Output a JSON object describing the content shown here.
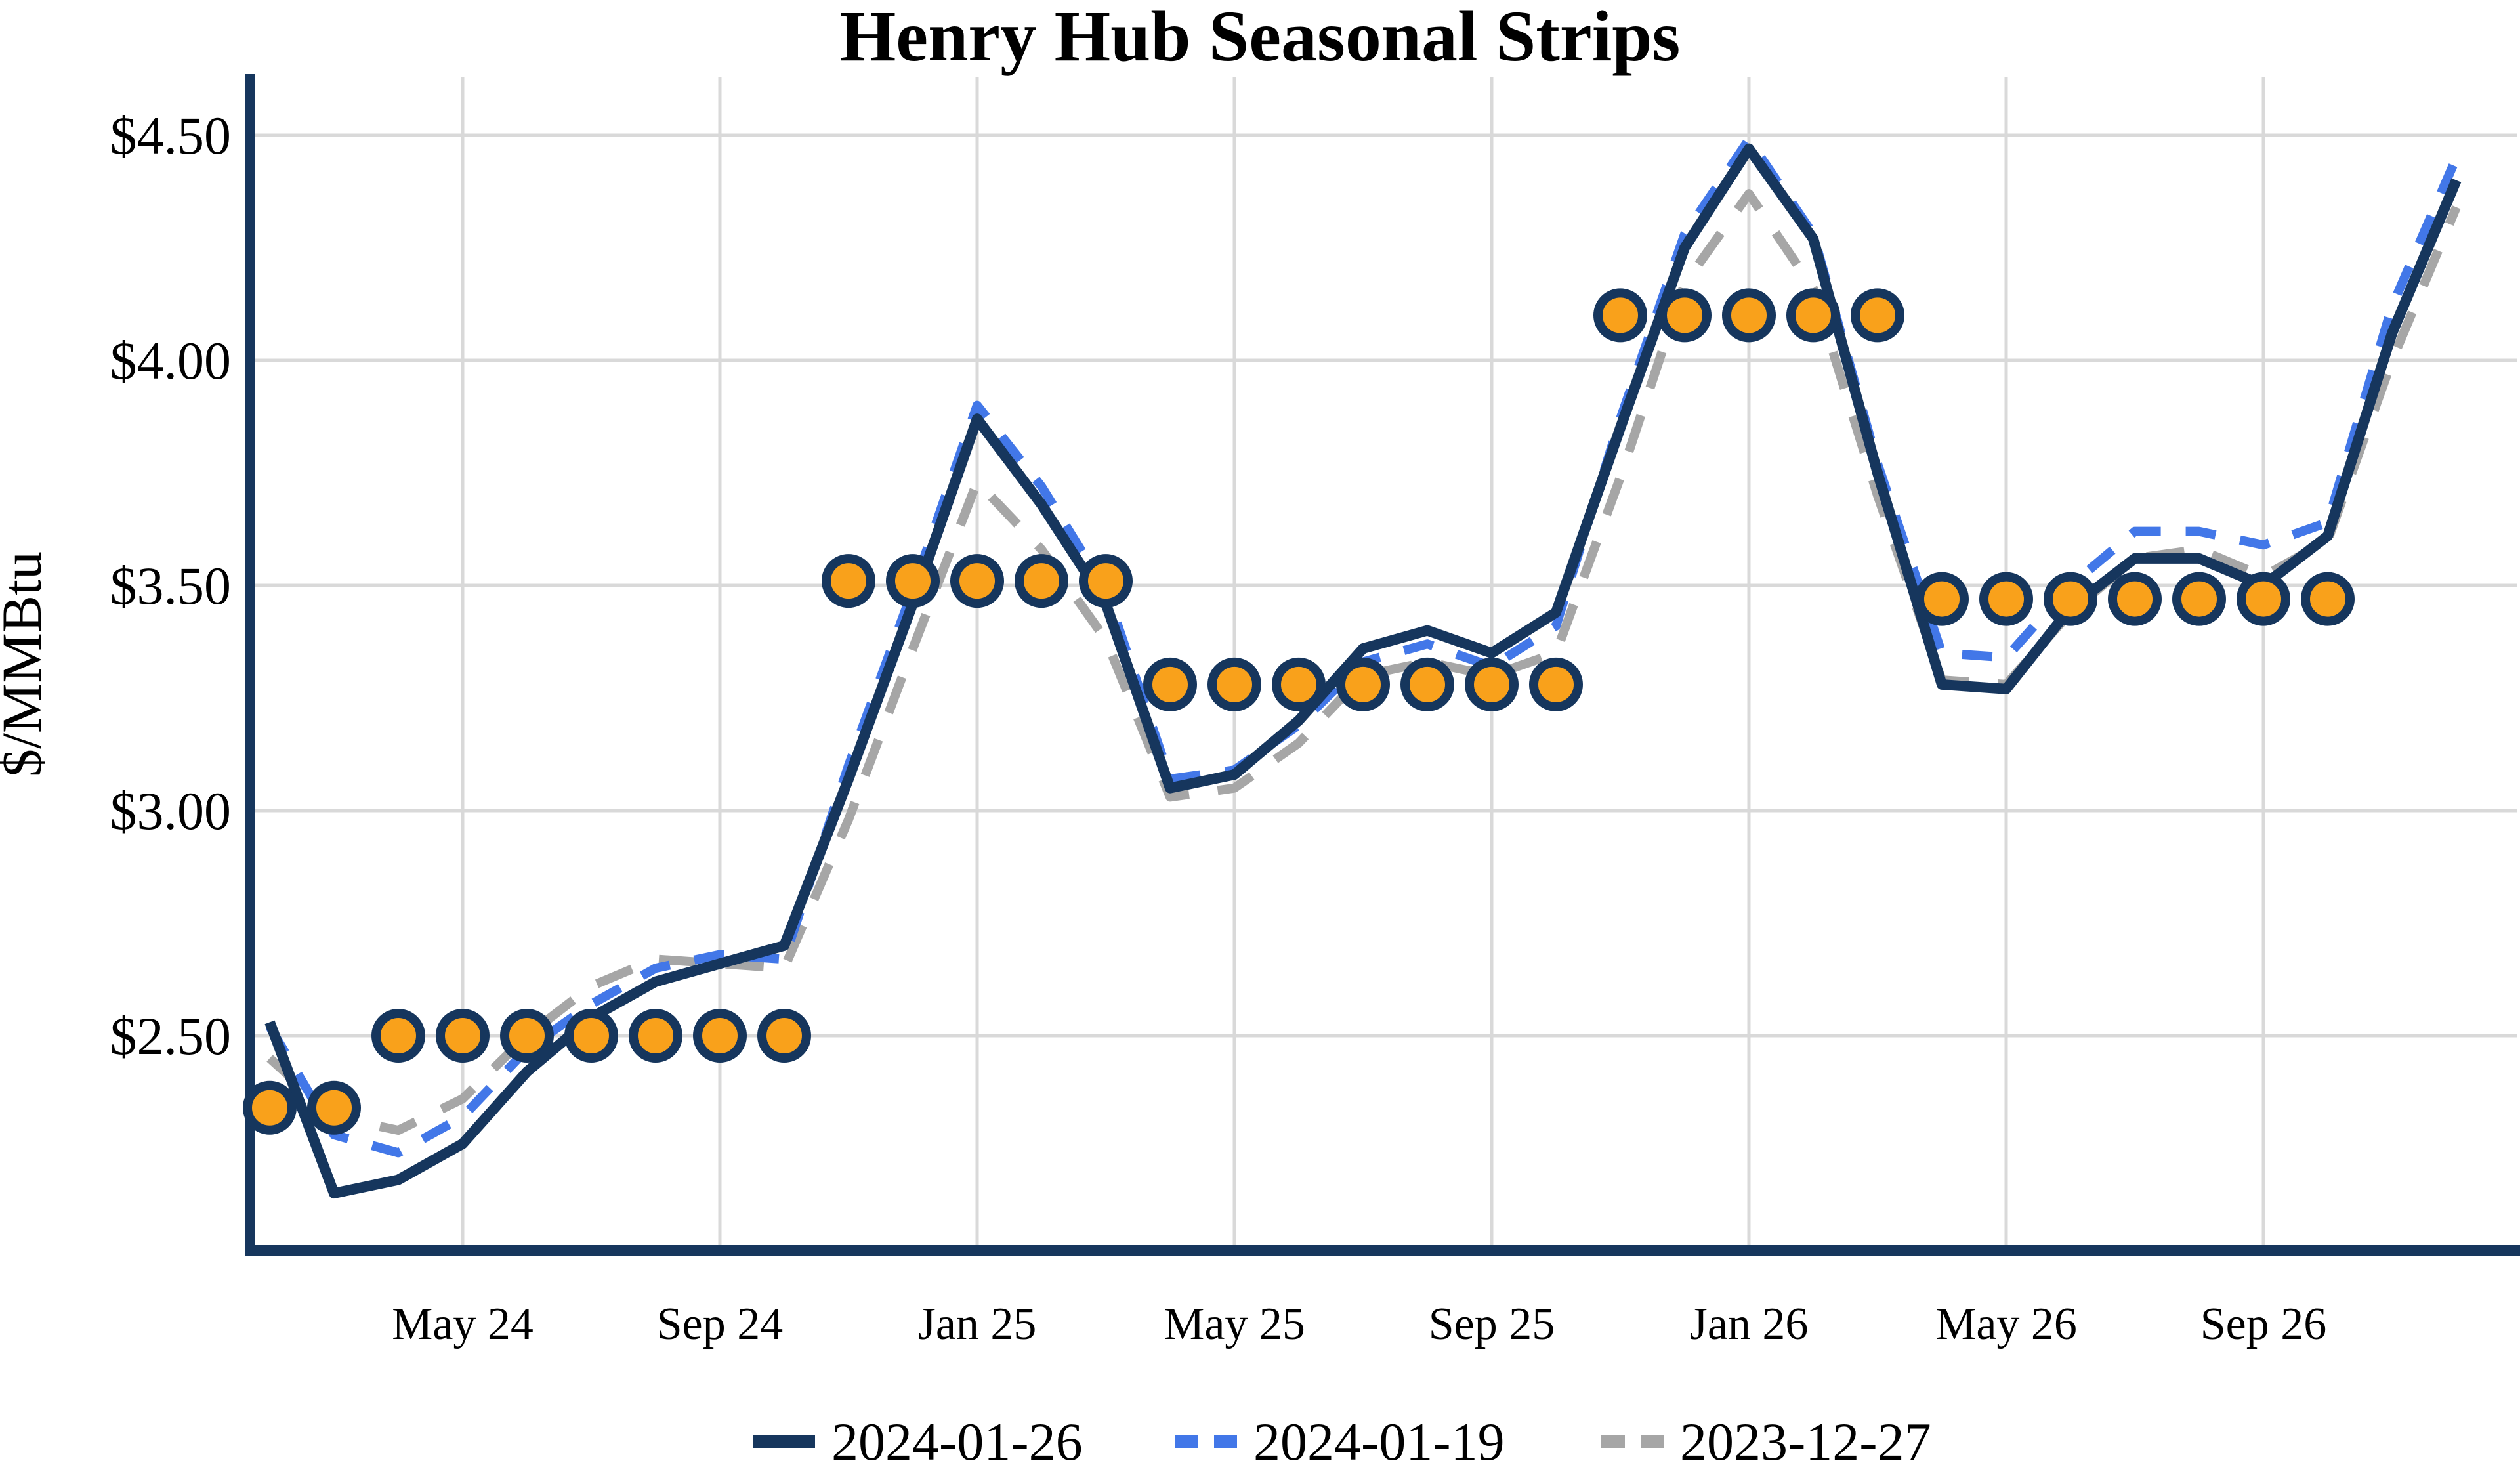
{
  "chart_data": {
    "type": "line",
    "title": "Henry Hub Seasonal Strips",
    "ylabel": "$/MMBtu",
    "xlabel": "",
    "grid": true,
    "legend_position": "bottom",
    "ylim": [
      2.02,
      4.62
    ],
    "y_ticks": [
      {
        "label": "$4.50",
        "value": 4.5
      },
      {
        "label": "$4.00",
        "value": 4.0
      },
      {
        "label": "$3.50",
        "value": 3.5
      },
      {
        "label": "$3.00",
        "value": 3.0
      },
      {
        "label": "$2.50",
        "value": 2.5
      }
    ],
    "months": [
      "2024-02",
      "2024-03",
      "2024-04",
      "2024-05",
      "2024-06",
      "2024-07",
      "2024-08",
      "2024-09",
      "2024-10",
      "2024-11",
      "2024-12",
      "2025-01",
      "2025-02",
      "2025-03",
      "2025-04",
      "2025-05",
      "2025-06",
      "2025-07",
      "2025-08",
      "2025-09",
      "2025-10",
      "2025-11",
      "2025-12",
      "2026-01",
      "2026-02",
      "2026-03",
      "2026-04",
      "2026-05",
      "2026-06",
      "2026-07",
      "2026-08",
      "2026-09",
      "2026-10",
      "2026-11",
      "2026-12"
    ],
    "x_ticks": [
      {
        "label": "May 24",
        "month_index": 3
      },
      {
        "label": "Sep 24",
        "month_index": 7
      },
      {
        "label": "Jan 25",
        "month_index": 11
      },
      {
        "label": "May 25",
        "month_index": 15
      },
      {
        "label": "Sep 25",
        "month_index": 19
      },
      {
        "label": "Jan 26",
        "month_index": 23
      },
      {
        "label": "May 26",
        "month_index": 27
      },
      {
        "label": "Sep 26",
        "month_index": 31
      }
    ],
    "series": [
      {
        "name": "2024-01-26",
        "style": "solid",
        "color": "#16365D",
        "values": [
          2.53,
          2.15,
          2.18,
          2.26,
          2.42,
          2.54,
          2.62,
          2.66,
          2.7,
          3.07,
          3.46,
          3.87,
          3.68,
          3.46,
          3.05,
          3.08,
          3.2,
          3.36,
          3.4,
          3.35,
          3.44,
          3.85,
          4.25,
          4.47,
          4.27,
          3.75,
          3.28,
          3.27,
          3.45,
          3.56,
          3.56,
          3.5,
          3.61,
          4.06,
          4.4
        ]
      },
      {
        "name": "2024-01-19",
        "style": "dashed",
        "color": "#4277E8",
        "values": [
          2.52,
          2.28,
          2.24,
          2.32,
          2.47,
          2.57,
          2.65,
          2.68,
          2.67,
          3.1,
          3.49,
          3.9,
          3.72,
          3.49,
          3.07,
          3.09,
          3.19,
          3.33,
          3.37,
          3.32,
          3.41,
          3.87,
          4.28,
          4.49,
          4.28,
          3.77,
          3.35,
          3.34,
          3.5,
          3.62,
          3.62,
          3.59,
          3.64,
          4.12,
          4.45
        ]
      },
      {
        "name": "2023-12-27",
        "style": "dashed",
        "color": "#A6A6A6",
        "values": [
          2.45,
          2.32,
          2.29,
          2.36,
          2.5,
          2.61,
          2.67,
          2.66,
          2.65,
          2.98,
          3.36,
          3.73,
          3.58,
          3.38,
          3.03,
          3.05,
          3.15,
          3.3,
          3.33,
          3.3,
          3.35,
          3.74,
          4.17,
          4.37,
          4.16,
          3.7,
          3.29,
          3.28,
          3.44,
          3.56,
          3.58,
          3.52,
          3.6,
          4.0,
          4.34
        ]
      }
    ],
    "seasonal_strips": {
      "marker_color": "#F9A11B",
      "marker_ring_color": "#16365D",
      "strips": [
        {
          "start_month_index": 0,
          "end_month_index": 1,
          "value": 2.34
        },
        {
          "start_month_index": 2,
          "end_month_index": 8,
          "value": 2.5
        },
        {
          "start_month_index": 9,
          "end_month_index": 13,
          "value": 3.51
        },
        {
          "start_month_index": 14,
          "end_month_index": 20,
          "value": 3.28
        },
        {
          "start_month_index": 21,
          "end_month_index": 25,
          "value": 4.1
        },
        {
          "start_month_index": 26,
          "end_month_index": 32,
          "value": 3.47
        }
      ]
    },
    "colors": {
      "axis_spine": "#16365D",
      "gridline": "#D9D9D9",
      "text": "#000000",
      "background": "#FFFFFF"
    }
  }
}
